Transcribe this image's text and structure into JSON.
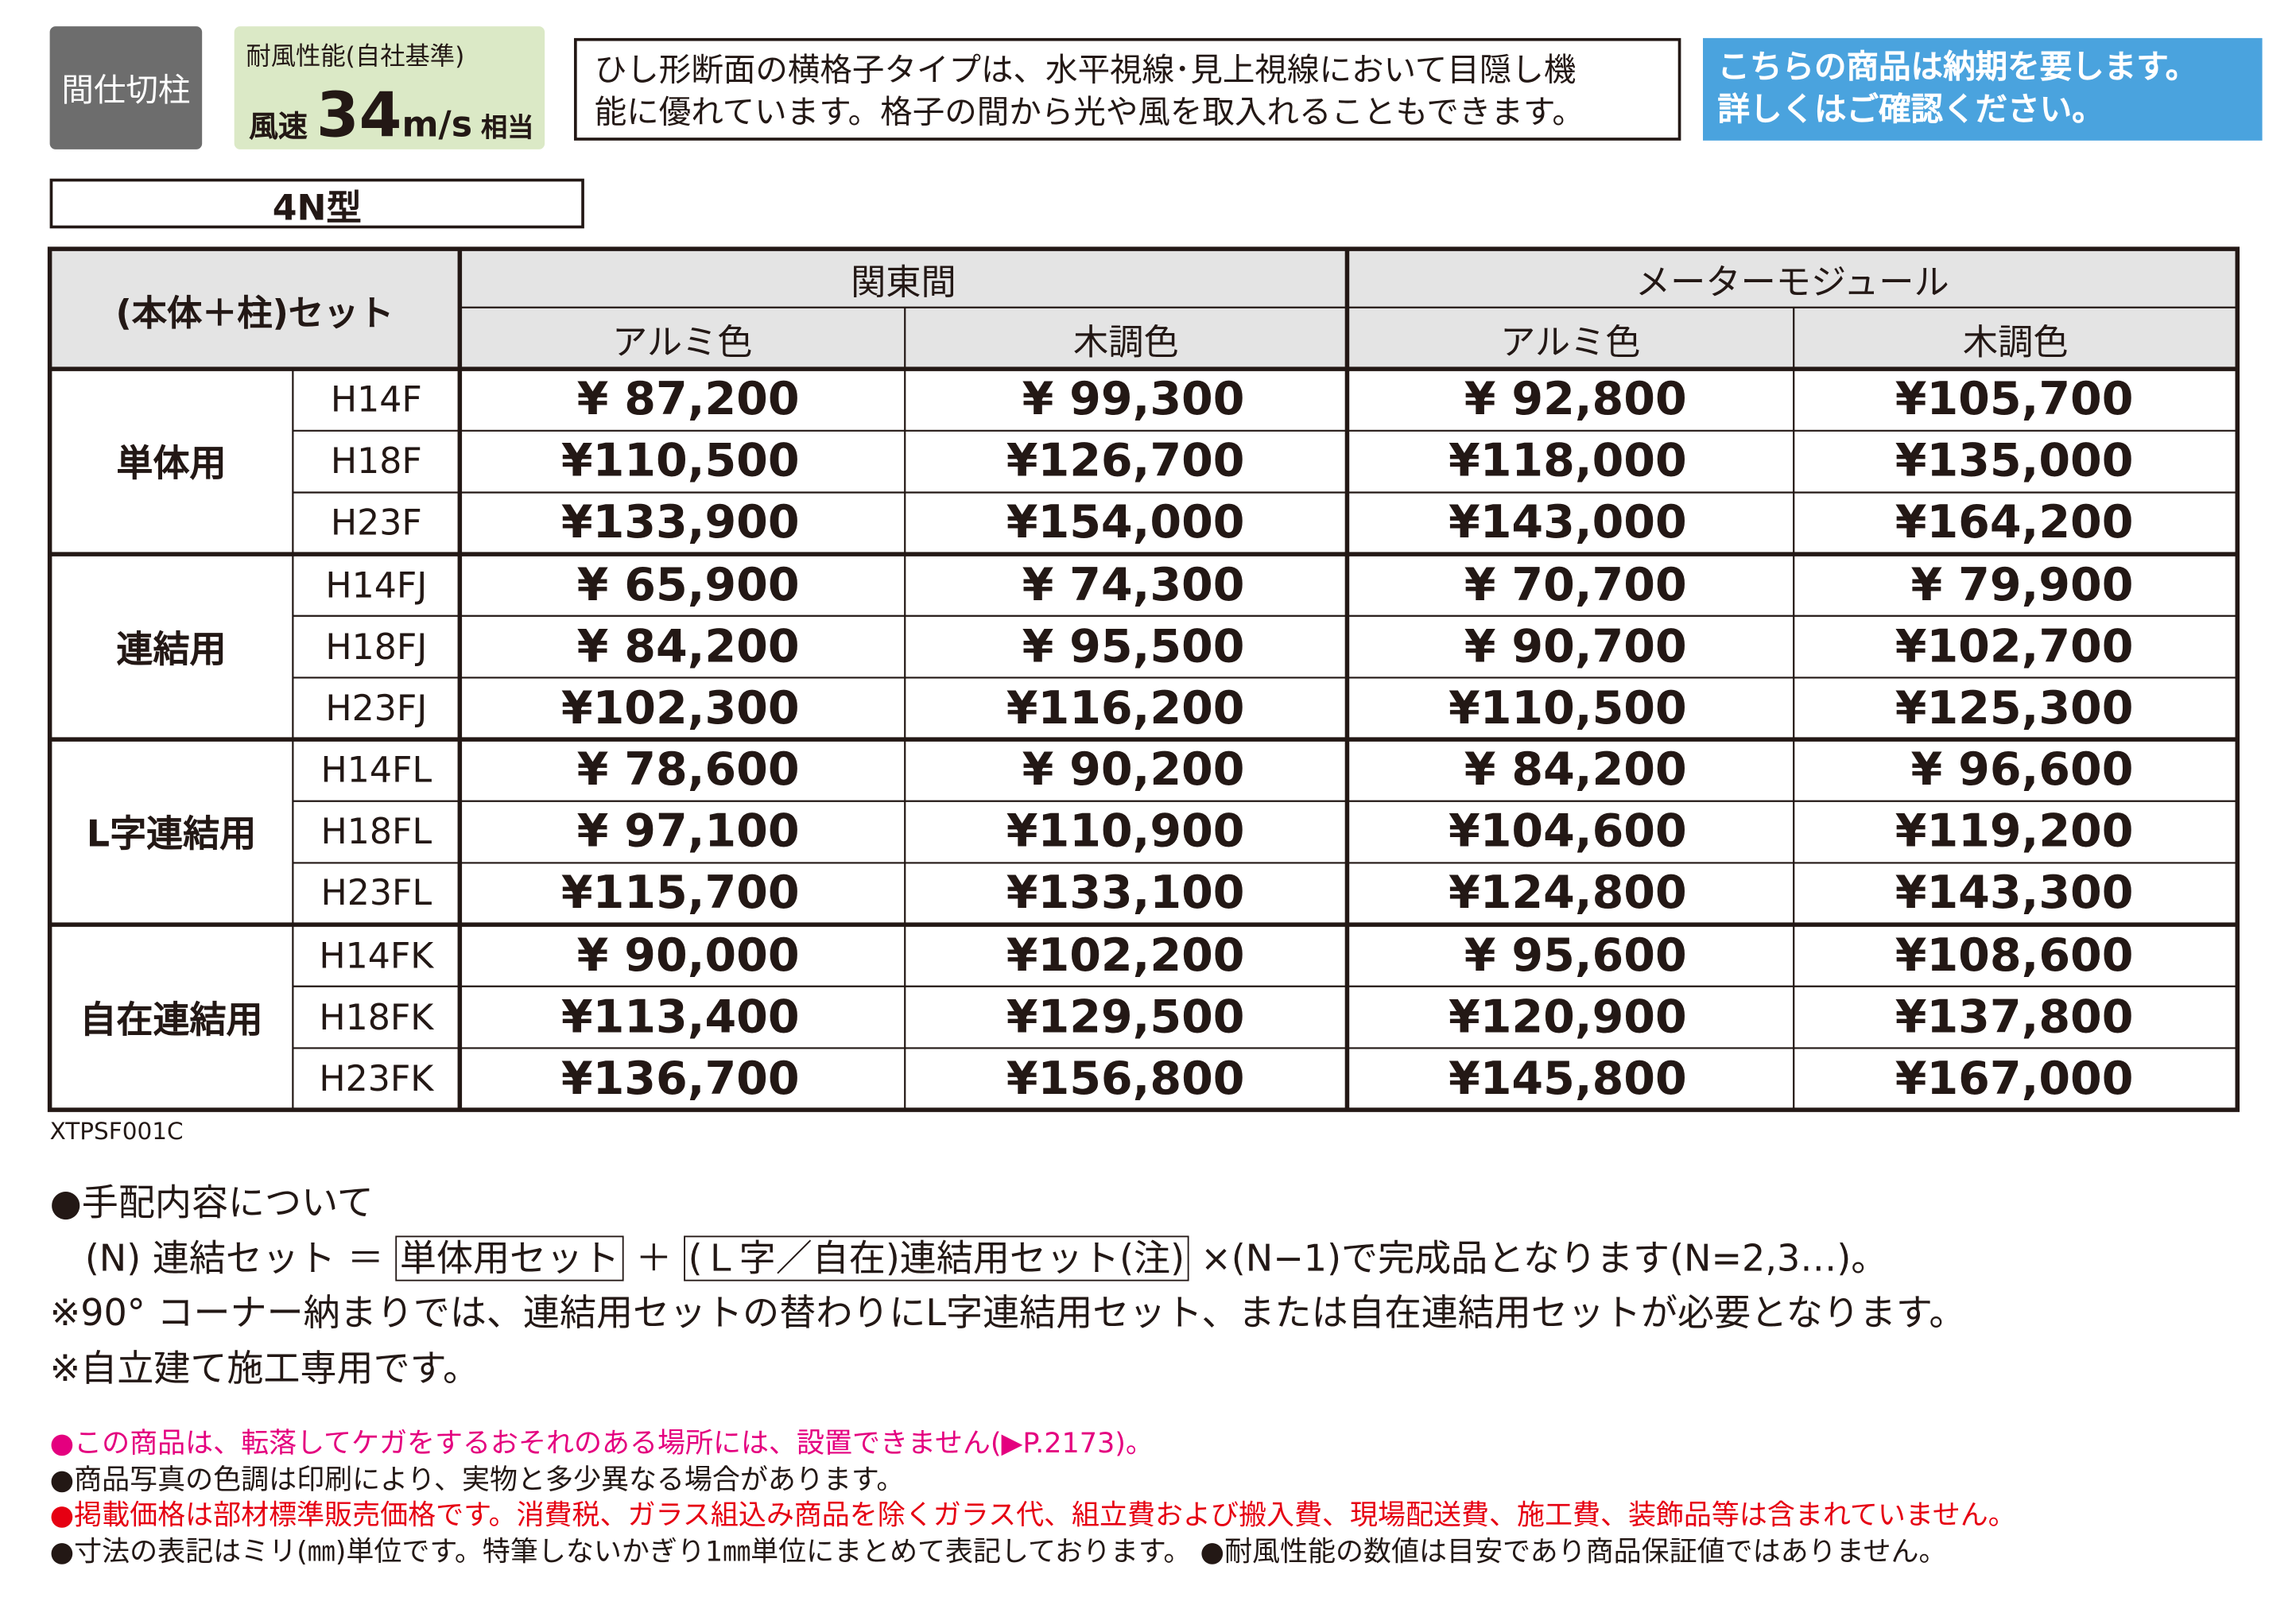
{
  "badges": {
    "category": "間仕切柱",
    "wind_title": "耐風性能(自社基準)",
    "wind_prefix": "風速",
    "wind_value": "34",
    "wind_unit": "m/s",
    "wind_suffix": "相当"
  },
  "description": [
    "ひし形断面の横格子タイプは、水平視線･見上視線において目隠し機",
    "能に優れています。格子の間から光や風を取入れることもできます。"
  ],
  "notice": [
    "こちらの商品は納期を要します。",
    "詳しくはご確認ください。"
  ],
  "model_label": "4N型",
  "table": {
    "corner": "(本体＋柱)セット",
    "groups": [
      "関東間",
      "メーターモジュール"
    ],
    "colors": [
      "アルミ色",
      "木調色",
      "アルミ色",
      "木調色"
    ],
    "sections": [
      {
        "name": "単体用",
        "rows": [
          {
            "model": "H14F",
            "prices": [
              "¥ 87,200",
              "¥ 99,300",
              "¥ 92,800",
              "¥105,700"
            ]
          },
          {
            "model": "H18F",
            "prices": [
              "¥110,500",
              "¥126,700",
              "¥118,000",
              "¥135,000"
            ]
          },
          {
            "model": "H23F",
            "prices": [
              "¥133,900",
              "¥154,000",
              "¥143,000",
              "¥164,200"
            ]
          }
        ]
      },
      {
        "name": "連結用",
        "rows": [
          {
            "model": "H14FJ",
            "prices": [
              "¥ 65,900",
              "¥ 74,300",
              "¥ 70,700",
              "¥ 79,900"
            ]
          },
          {
            "model": "H18FJ",
            "prices": [
              "¥ 84,200",
              "¥ 95,500",
              "¥ 90,700",
              "¥102,700"
            ]
          },
          {
            "model": "H23FJ",
            "prices": [
              "¥102,300",
              "¥116,200",
              "¥110,500",
              "¥125,300"
            ]
          }
        ]
      },
      {
        "name": "L字連結用",
        "rows": [
          {
            "model": "H14FL",
            "prices": [
              "¥ 78,600",
              "¥ 90,200",
              "¥ 84,200",
              "¥ 96,600"
            ]
          },
          {
            "model": "H18FL",
            "prices": [
              "¥ 97,100",
              "¥110,900",
              "¥104,600",
              "¥119,200"
            ]
          },
          {
            "model": "H23FL",
            "prices": [
              "¥115,700",
              "¥133,100",
              "¥124,800",
              "¥143,300"
            ]
          }
        ]
      },
      {
        "name": "自在連結用",
        "rows": [
          {
            "model": "H14FK",
            "prices": [
              "¥ 90,000",
              "¥102,200",
              "¥ 95,600",
              "¥108,600"
            ]
          },
          {
            "model": "H18FK",
            "prices": [
              "¥113,400",
              "¥129,500",
              "¥120,900",
              "¥137,800"
            ]
          },
          {
            "model": "H23FK",
            "prices": [
              "¥136,700",
              "¥156,800",
              "¥145,800",
              "¥167,000"
            ]
          }
        ]
      }
    ]
  },
  "code": "XTPSF001C",
  "notes": {
    "heading": "●手配内容について",
    "formula": [
      "(N) 連結セット ＝",
      "単体用セット",
      "＋",
      "(Ｌ字／自在)連結用セット(注)",
      "×(N−1)で完成品となります(N=2,3…)。"
    ],
    "lines": [
      "※90° コーナー納まりでは、連結用セットの替わりにL字連結用セット、または自在連結用セットが必要となります。",
      "※自立建て施工専用です。"
    ]
  },
  "footer": [
    "●この商品は、転落してケガをするおそれのある場所には、設置できません(▶P.2173)。",
    "●商品写真の色調は印刷により、実物と多少異なる場合があります。",
    "●掲載価格は部材標準販売価格です。消費税、ガラス組込み商品を除くガラス代、組立費および搬入費、現場配送費、施工費、装飾品等は含まれていません。",
    "●寸法の表記はミリ(㎜)単位です。特筆しないかぎり1㎜単位にまとめて表記しております。 ●耐風性能の数値は目安であり商品保証値ではありません。"
  ]
}
